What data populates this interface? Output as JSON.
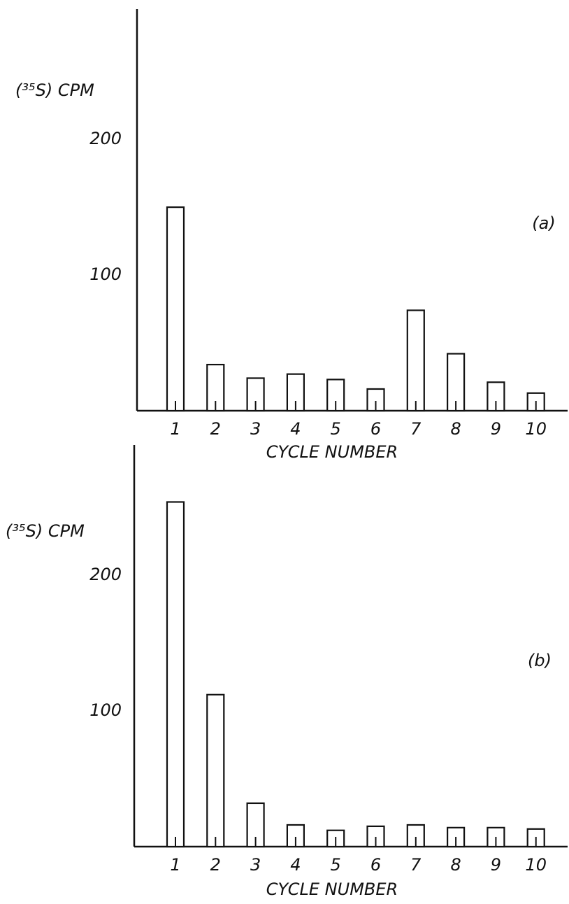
{
  "chart_data": [
    {
      "type": "bar",
      "y_label": "(³⁵S) CPM",
      "x_label": "CYCLE NUMBER",
      "annotation": "(a)",
      "categories": [
        "1",
        "2",
        "3",
        "4",
        "5",
        "6",
        "7",
        "8",
        "9",
        "10"
      ],
      "values": [
        150,
        34,
        24,
        27,
        23,
        16,
        74,
        42,
        21,
        13
      ],
      "color": "#ffffff",
      "edgecolor": "#111111",
      "ylim": [
        0,
        296
      ],
      "yticks": [
        100,
        200
      ],
      "grid": false
    },
    {
      "type": "bar",
      "y_label": "(³⁵S) CPM",
      "x_label": "CYCLE NUMBER",
      "annotation": "(b)",
      "categories": [
        "1",
        "2",
        "3",
        "4",
        "5",
        "6",
        "7",
        "8",
        "9",
        "10"
      ],
      "values": [
        254,
        112,
        32,
        16,
        12,
        15,
        16,
        14,
        14,
        13
      ],
      "color": "#ffffff",
      "edgecolor": "#111111",
      "ylim": [
        0,
        296
      ],
      "yticks": [
        100,
        200
      ],
      "grid": false
    }
  ]
}
